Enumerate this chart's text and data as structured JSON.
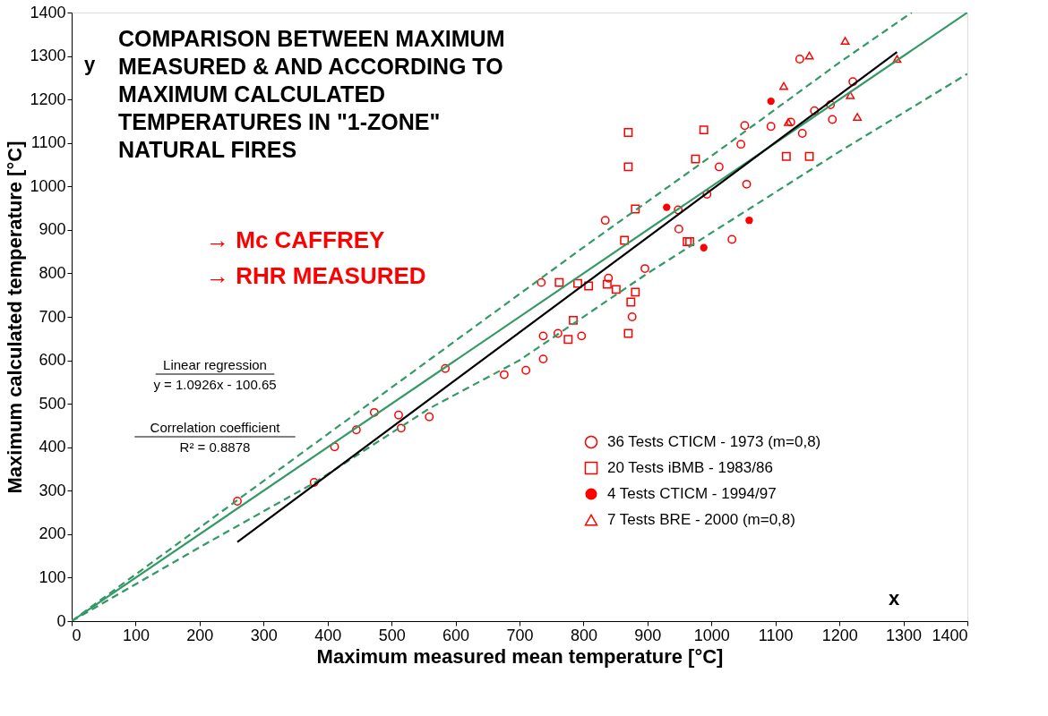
{
  "chart_data": {
    "type": "scatter",
    "title": "COMPARISON BETWEEN MAXIMUM MEASURED & AND ACCORDING TO MAXIMUM CALCULATED TEMPERATURES IN \"1-ZONE\" NATURAL FIRES",
    "xlabel": "Maximum measured mean temperature [°C]",
    "ylabel": "Maximum calculated temperature [°C]",
    "xlim": [
      0,
      1400
    ],
    "ylim": [
      0,
      1400
    ],
    "xticks": [
      0,
      100,
      200,
      300,
      400,
      500,
      600,
      700,
      800,
      900,
      1000,
      1100,
      1200,
      1300,
      1400
    ],
    "yticks": [
      0,
      100,
      200,
      300,
      400,
      500,
      600,
      700,
      800,
      900,
      1000,
      1100,
      1200,
      1300,
      1400
    ],
    "grid": false,
    "legend": "bottom right",
    "annotations": [
      "y",
      "x",
      "→ Mc CAFFREY",
      "→ RHR MEASURED",
      "Linear regression",
      "y = 1.0926x - 100.65",
      "Correlation coefficient",
      "R² = 0.8878"
    ],
    "series": [
      {
        "name": "36 Tests CTICM  - 1973 (m=0,8)",
        "color": "#ff0000",
        "marker": "circle",
        "x": [
          259,
          379,
          411,
          445,
          473,
          511,
          515,
          559,
          584,
          676,
          710,
          737,
          737,
          760,
          797,
          734,
          839,
          876,
          896,
          1138,
          1052,
          1093,
          1046,
          1012,
          1055,
          993,
          948,
          949,
          1032,
          834,
          1161,
          1186,
          1189,
          1124,
          1221,
          1142
        ],
        "values": [
          276,
          319,
          401,
          440,
          480,
          474,
          444,
          470,
          581,
          567,
          577,
          603,
          656,
          662,
          656,
          779,
          789,
          700,
          811,
          1293,
          1140,
          1138,
          1097,
          1045,
          1005,
          982,
          946,
          902,
          878,
          922,
          1174,
          1188,
          1154,
          1148,
          1241,
          1122
        ]
      },
      {
        "name": "20 Tests iBMB  - 1983/86",
        "color": "#ff0000",
        "marker": "square",
        "x": [
          870,
          870,
          988,
          975,
          881,
          864,
          962,
          966,
          1117,
          1153,
          762,
          791,
          808,
          837,
          851,
          881,
          874,
          784,
          776,
          870
        ],
        "values": [
          1124,
          1045,
          1130,
          1063,
          948,
          876,
          873,
          873,
          1069,
          1069,
          779,
          777,
          771,
          775,
          763,
          757,
          734,
          692,
          648,
          662
        ]
      },
      {
        "name": "4 Tests CTICM  - 1994/97",
        "color": "#ff0000",
        "marker": "circle",
        "x": [
          1093,
          930,
          1059,
          988
        ],
        "values": [
          1196,
          952,
          922,
          859
        ]
      },
      {
        "name": "7 Tests BRE  - 2000 (m=0,8)",
        "color": "#ff0000",
        "marker": "triangle",
        "x": [
          1153,
          1209,
          1113,
          1120,
          1217,
          1228,
          1290
        ],
        "values": [
          1301,
          1335,
          1231,
          1148,
          1210,
          1160,
          1293
        ]
      },
      {
        "type": "line",
        "color": "#339966",
        "line_style": "solid",
        "x": [
          0,
          1400
        ],
        "values": [
          0,
          1400
        ]
      },
      {
        "type": "line",
        "color": "#339966",
        "line_style": "dashed",
        "x": [
          0,
          200,
          400,
          600,
          800,
          1000,
          1200,
          1313
        ],
        "values": [
          0,
          215,
          430,
          645,
          860,
          1070,
          1285,
          1400
        ]
      },
      {
        "type": "line",
        "color": "#339966",
        "line_style": "dashed",
        "x": [
          0,
          200,
          379,
          560,
          700,
          900,
          1050,
          1200,
          1400
        ],
        "values": [
          0,
          170,
          318,
          490,
          600,
          800,
          940,
          1080,
          1259
        ]
      },
      {
        "type": "line",
        "color": "#000000",
        "line_style": "solid",
        "x": [
          259,
          1290
        ],
        "values": [
          182,
          1309
        ]
      }
    ]
  }
}
